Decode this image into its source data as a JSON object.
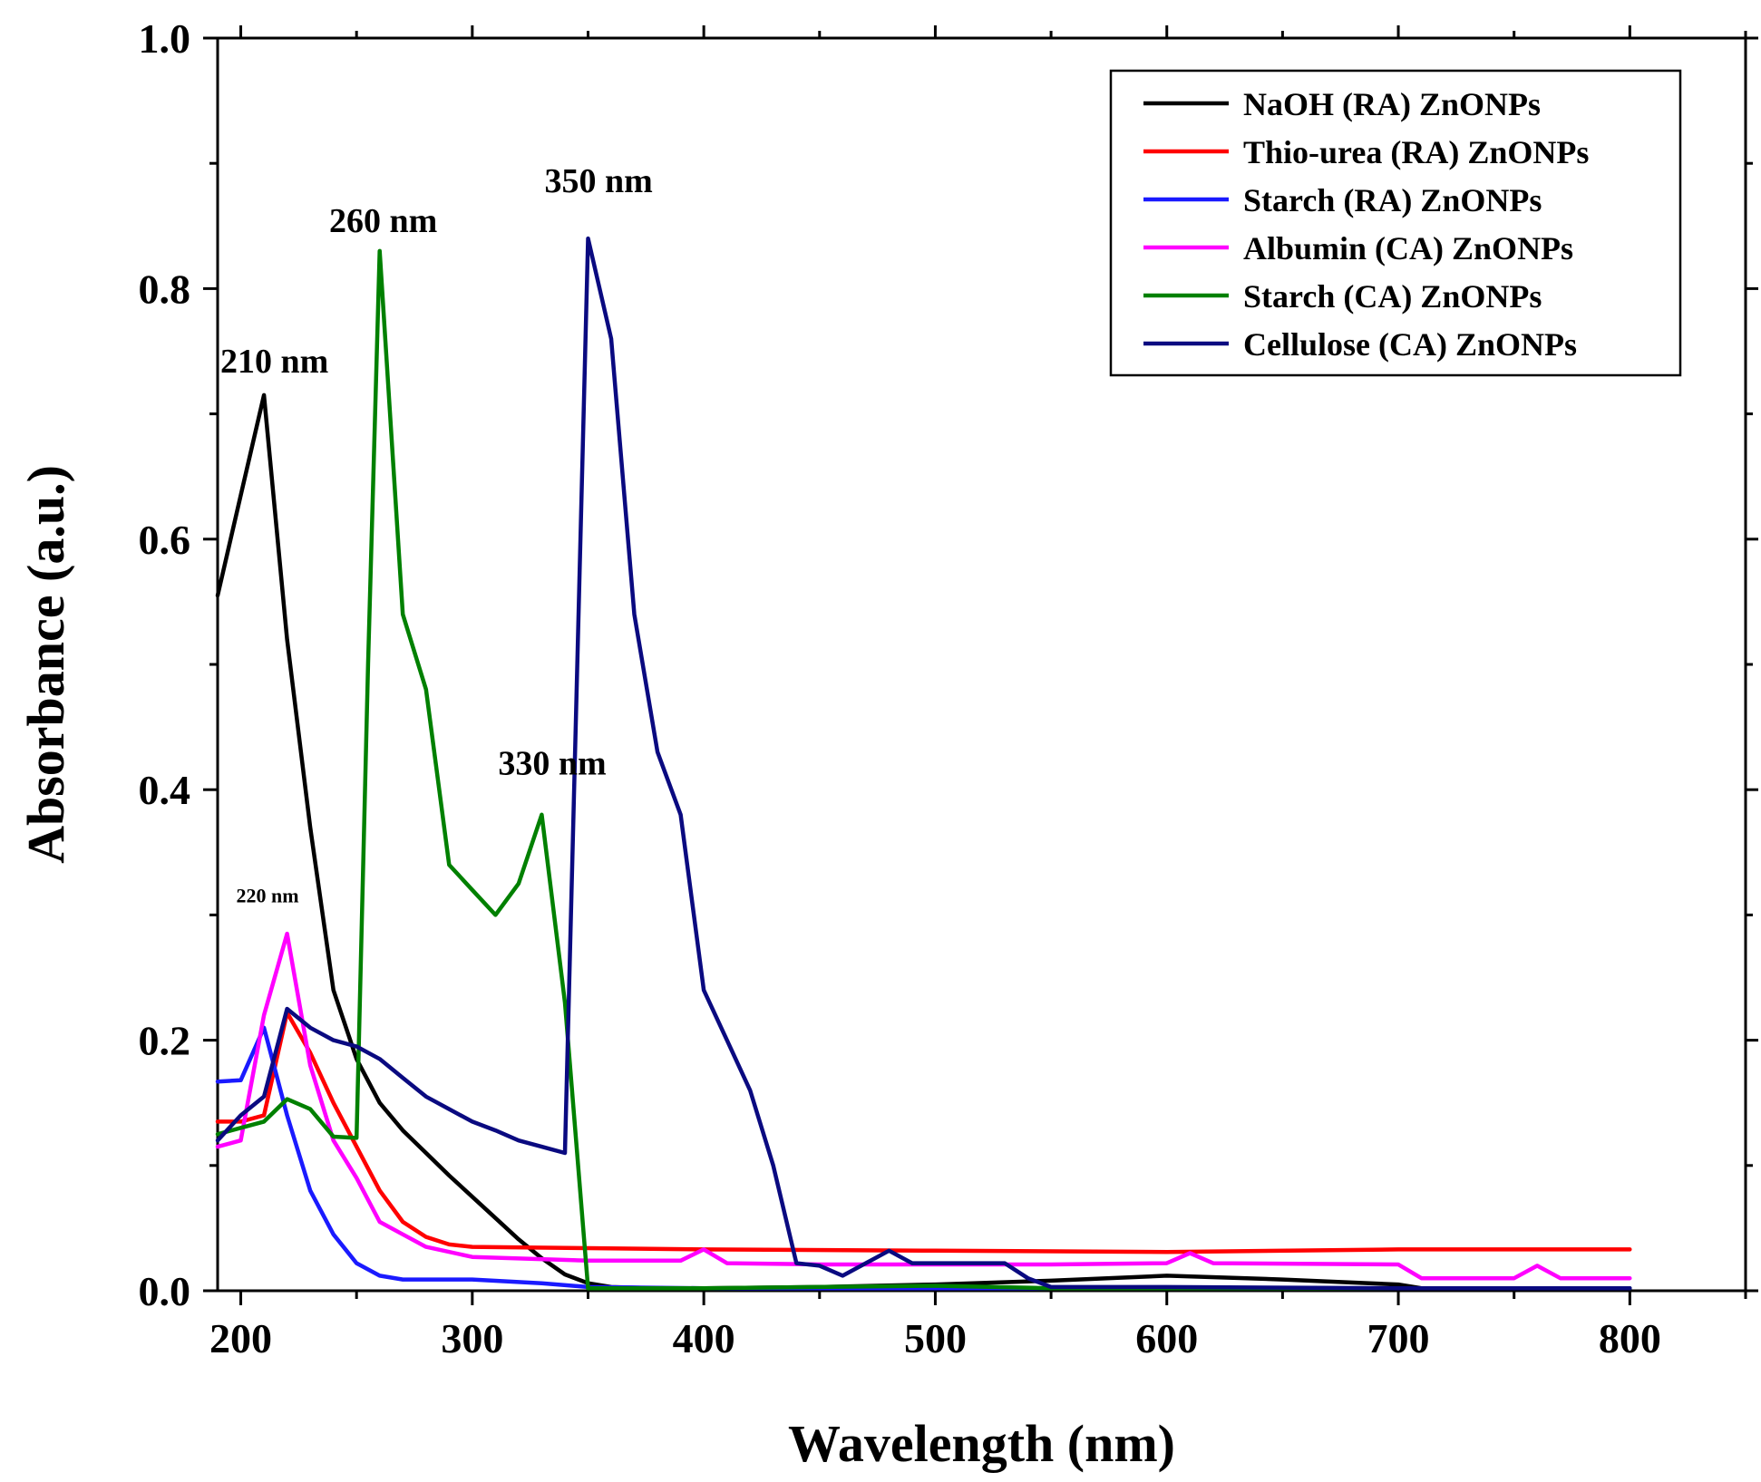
{
  "chart_data": {
    "type": "line",
    "title": "",
    "xlabel": "Wavelength (nm)",
    "ylabel": "Absorbance (a.u.)",
    "xlim": [
      190,
      850
    ],
    "ylim": [
      0,
      1.0
    ],
    "xticks": [
      200,
      300,
      400,
      500,
      600,
      700,
      800
    ],
    "xtick_labels": [
      "200",
      "300",
      "400",
      "500",
      "600",
      "700",
      "800"
    ],
    "yticks": [
      0.0,
      0.2,
      0.4,
      0.6,
      0.8,
      1.0
    ],
    "ytick_labels": [
      "0.0",
      "0.2",
      "0.4",
      "0.6",
      "0.8",
      "1.0"
    ],
    "grid": false,
    "legend_position": "top-right",
    "series": [
      {
        "name": "NaOH (RA) ZnONPs",
        "color": "#000000",
        "x": [
          190,
          200,
          210,
          220,
          230,
          240,
          250,
          260,
          270,
          280,
          290,
          300,
          310,
          320,
          330,
          340,
          350,
          360,
          380,
          400,
          450,
          500,
          550,
          600,
          650,
          700,
          710,
          800
        ],
        "y": [
          0.555,
          0.635,
          0.715,
          0.52,
          0.37,
          0.24,
          0.185,
          0.15,
          0.128,
          0.11,
          0.092,
          0.075,
          0.058,
          0.041,
          0.026,
          0.013,
          0.006,
          0.003,
          0.002,
          0.002,
          0.003,
          0.005,
          0.008,
          0.012,
          0.009,
          0.005,
          0.002,
          0.002
        ]
      },
      {
        "name": "Thio-urea (RA) ZnONPs",
        "color": "#ff0000",
        "x": [
          190,
          200,
          210,
          220,
          230,
          240,
          250,
          260,
          270,
          280,
          290,
          300,
          350,
          400,
          500,
          600,
          700,
          800
        ],
        "y": [
          0.135,
          0.135,
          0.14,
          0.222,
          0.19,
          0.15,
          0.115,
          0.08,
          0.055,
          0.043,
          0.037,
          0.035,
          0.034,
          0.033,
          0.032,
          0.031,
          0.033,
          0.033
        ]
      },
      {
        "name": "Starch (RA) ZnONPs",
        "color": "#1a1aff",
        "x": [
          190,
          200,
          210,
          220,
          230,
          240,
          250,
          260,
          270,
          280,
          300,
          330,
          350,
          400,
          500,
          600,
          700,
          800
        ],
        "y": [
          0.167,
          0.168,
          0.21,
          0.14,
          0.08,
          0.045,
          0.022,
          0.012,
          0.009,
          0.009,
          0.009,
          0.006,
          0.003,
          0.002,
          0.002,
          0.002,
          0.002,
          0.002
        ]
      },
      {
        "name": "Albumin (CA) ZnONPs",
        "color": "#ff00ff",
        "x": [
          190,
          200,
          210,
          220,
          230,
          240,
          250,
          260,
          270,
          280,
          300,
          350,
          390,
          400,
          410,
          450,
          500,
          550,
          600,
          610,
          620,
          700,
          710,
          750,
          760,
          770,
          800
        ],
        "y": [
          0.115,
          0.12,
          0.22,
          0.285,
          0.18,
          0.12,
          0.09,
          0.055,
          0.045,
          0.035,
          0.027,
          0.024,
          0.024,
          0.033,
          0.022,
          0.021,
          0.021,
          0.021,
          0.022,
          0.03,
          0.022,
          0.021,
          0.01,
          0.01,
          0.02,
          0.01,
          0.01
        ]
      },
      {
        "name": "Starch (CA) ZnONPs",
        "color": "#008000",
        "x": [
          190,
          200,
          210,
          220,
          230,
          240,
          250,
          255,
          260,
          270,
          280,
          290,
          300,
          310,
          320,
          330,
          340,
          350,
          360,
          400,
          500,
          550,
          600,
          800
        ],
        "y": [
          0.125,
          0.13,
          0.135,
          0.153,
          0.145,
          0.123,
          0.122,
          0.5,
          0.83,
          0.54,
          0.48,
          0.34,
          0.32,
          0.3,
          0.325,
          0.38,
          0.23,
          0.002,
          0.002,
          0.002,
          0.004,
          0.002,
          0.002,
          0.002
        ]
      },
      {
        "name": "Cellulose (CA) ZnONPs",
        "color": "#0a0a80",
        "x": [
          190,
          200,
          210,
          220,
          230,
          240,
          250,
          260,
          270,
          280,
          290,
          300,
          310,
          320,
          330,
          340,
          350,
          360,
          370,
          380,
          390,
          400,
          410,
          420,
          430,
          440,
          450,
          460,
          470,
          480,
          490,
          500,
          510,
          520,
          530,
          540,
          550,
          600,
          700,
          800
        ],
        "y": [
          0.12,
          0.14,
          0.155,
          0.225,
          0.21,
          0.2,
          0.195,
          0.185,
          0.17,
          0.155,
          0.145,
          0.135,
          0.128,
          0.12,
          0.115,
          0.11,
          0.84,
          0.76,
          0.54,
          0.43,
          0.38,
          0.24,
          0.2,
          0.16,
          0.1,
          0.022,
          0.02,
          0.012,
          0.022,
          0.032,
          0.022,
          0.022,
          0.022,
          0.022,
          0.022,
          0.01,
          0.003,
          0.003,
          0.002,
          0.002
        ]
      }
    ],
    "annotations": [
      {
        "text": "210 nm",
        "x": 210,
        "y": 0.733,
        "size": "large"
      },
      {
        "text": "260 nm",
        "x": 257,
        "y": 0.845,
        "size": "large"
      },
      {
        "text": "350 nm",
        "x": 350,
        "y": 0.877,
        "size": "large"
      },
      {
        "text": "330 nm",
        "x": 330,
        "y": 0.412,
        "size": "large"
      },
      {
        "text": "220 nm",
        "x": 200,
        "y": 0.31,
        "size": "small"
      }
    ]
  }
}
